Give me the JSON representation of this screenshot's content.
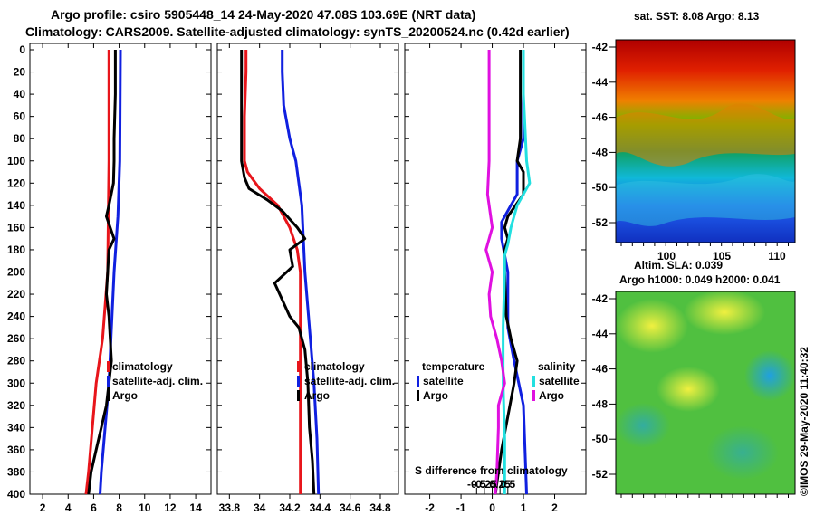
{
  "chart_data": {
    "type": "line",
    "title_line1": "Argo profile: csiro 5905448_14 24-May-2020 47.08S 103.69E (NRT data)",
    "title_line2": "Climatology: CARS2009. Satellite-adjusted climatology: synTS_20200524.nc (0.42d earlier)",
    "depth_ticks": [
      0,
      20,
      40,
      60,
      80,
      100,
      120,
      140,
      160,
      180,
      200,
      220,
      240,
      260,
      280,
      300,
      320,
      340,
      360,
      380,
      400
    ],
    "colors": {
      "red": "#e8151b",
      "blue": "#1020e0",
      "black": "#000000",
      "magenta": "#e010e0",
      "cyan": "#22e0e0"
    },
    "panels": [
      {
        "name": "temperature",
        "xlim": [
          1,
          15.2
        ],
        "xticks": [
          2,
          4,
          6,
          8,
          10,
          12,
          14
        ],
        "xtick_labels": [
          "2",
          "4",
          "6",
          "8",
          "10",
          "12",
          "14"
        ],
        "legend": [
          "climatology",
          "satellite-adj. clim.",
          "Argo"
        ],
        "series": [
          {
            "name": "climatology",
            "color": "red",
            "points": [
              [
                7.2,
                0
              ],
              [
                7.2,
                100
              ],
              [
                7.1,
                200
              ],
              [
                6.7,
                260
              ],
              [
                6.2,
                300
              ],
              [
                5.9,
                340
              ],
              [
                5.6,
                380
              ],
              [
                5.4,
                400
              ]
            ]
          },
          {
            "name": "satellite-adj. clim.",
            "color": "blue",
            "points": [
              [
                8.1,
                0
              ],
              [
                8.05,
                100
              ],
              [
                7.9,
                150
              ],
              [
                7.6,
                200
              ],
              [
                7.4,
                250
              ],
              [
                7.2,
                300
              ],
              [
                6.9,
                340
              ],
              [
                6.6,
                380
              ],
              [
                6.5,
                400
              ]
            ]
          },
          {
            "name": "Argo",
            "color": "black",
            "points": [
              [
                7.7,
                0
              ],
              [
                7.7,
                40
              ],
              [
                7.6,
                80
              ],
              [
                7.6,
                100
              ],
              [
                7.55,
                120
              ],
              [
                7.2,
                140
              ],
              [
                7.0,
                150
              ],
              [
                7.3,
                160
              ],
              [
                7.6,
                170
              ],
              [
                7.2,
                180
              ],
              [
                7.1,
                200
              ],
              [
                7.0,
                220
              ],
              [
                7.2,
                240
              ],
              [
                7.3,
                260
              ],
              [
                7.4,
                280
              ],
              [
                7.2,
                300
              ],
              [
                7.0,
                320
              ],
              [
                6.6,
                340
              ],
              [
                6.2,
                360
              ],
              [
                5.8,
                380
              ],
              [
                5.6,
                400
              ]
            ]
          }
        ]
      },
      {
        "name": "salinity",
        "xlim": [
          33.72,
          34.92
        ],
        "xticks": [
          33.8,
          34.0,
          34.2,
          34.4,
          34.6,
          34.8
        ],
        "xtick_labels": [
          "33.8",
          "34",
          "34.2",
          "34.4",
          "34.6",
          "34.8"
        ],
        "legend": [
          "climatology",
          "satellite-adj. clim.",
          "Argo"
        ],
        "series": [
          {
            "name": "climatology",
            "color": "red",
            "points": [
              [
                33.91,
                0
              ],
              [
                33.91,
                20
              ],
              [
                33.9,
                60
              ],
              [
                33.9,
                100
              ],
              [
                33.92,
                110
              ],
              [
                34.0,
                125
              ],
              [
                34.12,
                140
              ],
              [
                34.2,
                160
              ],
              [
                34.25,
                180
              ],
              [
                34.27,
                200
              ],
              [
                34.27,
                300
              ],
              [
                34.27,
                400
              ]
            ]
          },
          {
            "name": "satellite-adj. clim.",
            "color": "blue",
            "points": [
              [
                34.15,
                0
              ],
              [
                34.15,
                20
              ],
              [
                34.16,
                50
              ],
              [
                34.2,
                80
              ],
              [
                34.24,
                100
              ],
              [
                34.26,
                120
              ],
              [
                34.28,
                140
              ],
              [
                34.3,
                200
              ],
              [
                34.33,
                250
              ],
              [
                34.36,
                300
              ],
              [
                34.38,
                350
              ],
              [
                34.39,
                400
              ]
            ]
          },
          {
            "name": "Argo",
            "color": "black",
            "points": [
              [
                33.88,
                0
              ],
              [
                33.88,
                60
              ],
              [
                33.88,
                100
              ],
              [
                33.9,
                115
              ],
              [
                33.93,
                125
              ],
              [
                34.05,
                135
              ],
              [
                34.15,
                145
              ],
              [
                34.25,
                160
              ],
              [
                34.3,
                170
              ],
              [
                34.2,
                180
              ],
              [
                34.22,
                195
              ],
              [
                34.1,
                210
              ],
              [
                34.15,
                225
              ],
              [
                34.2,
                240
              ],
              [
                34.26,
                250
              ],
              [
                34.3,
                270
              ],
              [
                34.32,
                300
              ],
              [
                34.33,
                340
              ],
              [
                34.35,
                370
              ],
              [
                34.36,
                400
              ]
            ]
          }
        ]
      },
      {
        "name": "difference",
        "xlim": [
          -2.8,
          3
        ],
        "xticks": [
          -2,
          -1,
          0,
          1,
          2
        ],
        "xtick_labels": [
          "-2",
          "-1",
          "0",
          "1",
          "2"
        ],
        "inner_ticks": [
          -0.5,
          -0.25,
          0,
          0.25,
          0.5
        ],
        "inner_tick_labels": [
          "-0.5",
          "-0.25",
          "0",
          "0.25",
          "0.5"
        ],
        "inner_label": "S difference from climatology",
        "legend_temperature_title": "temperature",
        "legend_salinity_title": "salinity",
        "legend_items": [
          "satellite",
          "Argo"
        ],
        "series": [
          {
            "name": "temperature satellite",
            "color": "blue",
            "points": [
              [
                1.0,
                0
              ],
              [
                1.0,
                40
              ],
              [
                1.0,
                80
              ],
              [
                0.8,
                100
              ],
              [
                0.8,
                130
              ],
              [
                0.6,
                140
              ],
              [
                0.3,
                155
              ],
              [
                0.3,
                170
              ],
              [
                0.5,
                200
              ],
              [
                0.5,
                250
              ],
              [
                0.7,
                280
              ],
              [
                1.0,
                320
              ],
              [
                1.1,
                400
              ]
            ]
          },
          {
            "name": "temperature Argo",
            "color": "black",
            "points": [
              [
                0.9,
                0
              ],
              [
                0.9,
                60
              ],
              [
                0.9,
                80
              ],
              [
                0.8,
                100
              ],
              [
                1.0,
                110
              ],
              [
                1.0,
                130
              ],
              [
                0.5,
                150
              ],
              [
                0.4,
                160
              ],
              [
                0.5,
                170
              ],
              [
                0.4,
                180
              ],
              [
                0.4,
                200
              ],
              [
                0.45,
                240
              ],
              [
                0.6,
                260
              ],
              [
                0.8,
                280
              ],
              [
                0.7,
                300
              ],
              [
                0.5,
                330
              ],
              [
                0.3,
                360
              ],
              [
                0.1,
                400
              ]
            ]
          },
          {
            "name": "salinity satellite",
            "color": "cyan",
            "points": [
              [
                1.0,
                0
              ],
              [
                1.0,
                40
              ],
              [
                1.1,
                100
              ],
              [
                1.2,
                120
              ],
              [
                0.8,
                140
              ],
              [
                0.6,
                160
              ],
              [
                0.5,
                175
              ],
              [
                0.4,
                185
              ],
              [
                0.4,
                200
              ],
              [
                0.35,
                250
              ],
              [
                0.35,
                300
              ],
              [
                0.4,
                350
              ],
              [
                0.4,
                400
              ]
            ]
          },
          {
            "name": "salinity Argo",
            "color": "magenta",
            "points": [
              [
                -0.1,
                0
              ],
              [
                -0.1,
                50
              ],
              [
                -0.1,
                100
              ],
              [
                -0.15,
                130
              ],
              [
                0.0,
                160
              ],
              [
                -0.2,
                180
              ],
              [
                0.0,
                200
              ],
              [
                -0.1,
                220
              ],
              [
                -0.05,
                240
              ],
              [
                0.15,
                260
              ],
              [
                0.3,
                280
              ],
              [
                0.4,
                300
              ],
              [
                0.2,
                320
              ],
              [
                0.2,
                340
              ],
              [
                0.15,
                380
              ],
              [
                0.1,
                400
              ]
            ]
          }
        ]
      }
    ],
    "map_top": {
      "title": "sat. SST: 8.08 Argo: 8.13",
      "lat_labels": [
        "-42",
        "-44",
        "-46",
        "-48",
        "-50",
        "-52"
      ],
      "lon_labels": [
        "100",
        "105",
        "110"
      ]
    },
    "map_bottom": {
      "title1": "Altim. SLA: 0.039",
      "title2": "Argo h1000: 0.049 h2000: 0.041",
      "lat_labels": [
        "-42",
        "-44",
        "-46",
        "-48",
        "-50",
        "-52"
      ]
    },
    "credit": "©IMOS 29-May-2020 11:40:32"
  }
}
